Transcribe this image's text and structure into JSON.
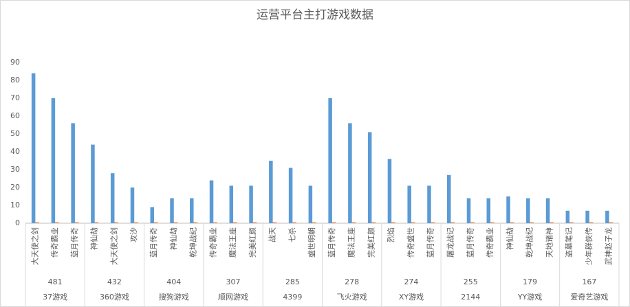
{
  "chart_data": {
    "type": "bar",
    "title": "运营平台主打游戏数据",
    "groups": [
      {
        "name": "37游戏",
        "label": 481,
        "categories": [
          "大天使之剑",
          "传奇霸业",
          "蓝月传奇"
        ]
      },
      {
        "name": "360游戏",
        "label": 432,
        "categories": [
          "神仙劫",
          "大天使之剑",
          "攻沙"
        ]
      },
      {
        "name": "搜狗游戏",
        "label": 404,
        "categories": [
          "蓝月传奇",
          "神仙劫",
          "乾坤战纪"
        ]
      },
      {
        "name": "顺网游戏",
        "label": 307,
        "categories": [
          "传奇霸业",
          "魔法王座",
          "完美红颜"
        ]
      },
      {
        "name": "4399",
        "label": 285,
        "categories": [
          "战天",
          "七杀",
          "盛世明朝"
        ]
      },
      {
        "name": "飞火游戏",
        "label": 278,
        "categories": [
          "蓝月传奇",
          "魔法王座",
          "完美红颜"
        ]
      },
      {
        "name": "XY游戏",
        "label": 274,
        "categories": [
          "烈焰",
          "传奇盛世",
          "蓝月传奇"
        ]
      },
      {
        "name": "2144",
        "label": 255,
        "categories": [
          "屠龙战记",
          "蓝月传奇",
          "传奇霸业"
        ]
      },
      {
        "name": "YY游戏",
        "label": 179,
        "categories": [
          "神仙劫",
          "乾坤战纪",
          "天地诸神"
        ]
      },
      {
        "name": "爱奇艺游戏",
        "label": 167,
        "categories": [
          "盗墓笔记",
          "少年群侠传",
          "武神赵子龙"
        ]
      }
    ],
    "series": [
      {
        "color": "#5b9bd5",
        "values": [
          84,
          70,
          56,
          44,
          28,
          20,
          9,
          14,
          14,
          24,
          21,
          21,
          35,
          31,
          21,
          70,
          56,
          51,
          36,
          21,
          21,
          27,
          14,
          14,
          15,
          14,
          14,
          7,
          7,
          7
        ]
      },
      {
        "color": "#ed7d31",
        "values": [
          0.5,
          0.5,
          0.5,
          0.5,
          0.5,
          0.5,
          0.5,
          0.5,
          0.5,
          0.5,
          0.5,
          0.5,
          0.5,
          0.5,
          0.5,
          0.5,
          0.5,
          0.5,
          0.5,
          0.5,
          0.5,
          0.5,
          0.5,
          0.5,
          0.5,
          0.5,
          0.5,
          0.5,
          0.5,
          0.5
        ]
      }
    ],
    "ylim": [
      0,
      90
    ],
    "yticks": [
      0,
      10,
      20,
      30,
      40,
      50,
      60,
      70,
      80,
      90
    ],
    "grid": false
  }
}
